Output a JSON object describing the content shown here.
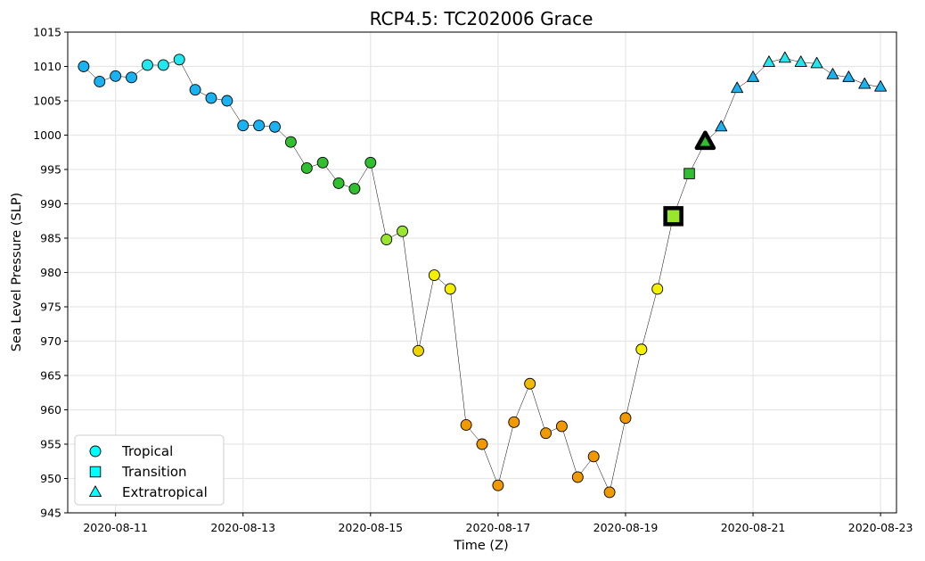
{
  "chart_data": {
    "type": "scatter",
    "title": "RCP4.5: TC202006 Grace",
    "xlabel": "Time (Z)",
    "ylabel": "Sea Level Pressure (SLP)",
    "ylim": [
      945,
      1015
    ],
    "yticks": [
      945,
      950,
      955,
      960,
      965,
      970,
      975,
      980,
      985,
      990,
      995,
      1000,
      1005,
      1010,
      1015
    ],
    "xlim": [
      "2020-08-10T06:00",
      "2020-08-23T06:00"
    ],
    "xticks": [
      "2020-08-11",
      "2020-08-13",
      "2020-08-15",
      "2020-08-17",
      "2020-08-19",
      "2020-08-21",
      "2020-08-23"
    ],
    "grid": true,
    "legend": {
      "placement": "lower-left",
      "entries": [
        {
          "label": "Tropical",
          "marker": "circle"
        },
        {
          "label": "Transition",
          "marker": "square"
        },
        {
          "label": "Extratropical",
          "marker": "triangle"
        }
      ]
    },
    "colors": {
      "line": "#000000",
      "legend_marker": "#00ffff",
      "highlight_edge": "#000000"
    },
    "series": [
      {
        "x": [
          "2020-08-10T12:00",
          "2020-08-10T18:00",
          "2020-08-11T00:00",
          "2020-08-11T06:00",
          "2020-08-11T12:00",
          "2020-08-11T18:00",
          "2020-08-12T00:00",
          "2020-08-12T06:00",
          "2020-08-12T12:00",
          "2020-08-12T18:00",
          "2020-08-13T00:00",
          "2020-08-13T06:00",
          "2020-08-13T12:00",
          "2020-08-13T18:00",
          "2020-08-14T00:00",
          "2020-08-14T06:00",
          "2020-08-14T12:00",
          "2020-08-14T18:00",
          "2020-08-15T00:00",
          "2020-08-15T06:00",
          "2020-08-15T12:00",
          "2020-08-15T18:00",
          "2020-08-16T00:00",
          "2020-08-16T06:00",
          "2020-08-16T12:00",
          "2020-08-16T18:00",
          "2020-08-17T00:00",
          "2020-08-17T06:00",
          "2020-08-17T12:00",
          "2020-08-17T18:00",
          "2020-08-18T00:00",
          "2020-08-18T06:00",
          "2020-08-18T12:00",
          "2020-08-18T18:00",
          "2020-08-19T00:00",
          "2020-08-19T06:00",
          "2020-08-19T12:00",
          "2020-08-19T18:00",
          "2020-08-20T00:00",
          "2020-08-20T06:00",
          "2020-08-20T12:00",
          "2020-08-20T18:00",
          "2020-08-21T00:00",
          "2020-08-21T06:00",
          "2020-08-21T12:00",
          "2020-08-21T18:00",
          "2020-08-22T00:00",
          "2020-08-22T06:00",
          "2020-08-22T12:00",
          "2020-08-22T18:00",
          "2020-08-23T00:00"
        ],
        "y": [
          1010,
          1007.8,
          1008.6,
          1008.4,
          1010.2,
          1010.2,
          1011,
          1006.6,
          1005.4,
          1005,
          1001.4,
          1001.4,
          1001.2,
          999,
          995.2,
          996,
          993,
          992.2,
          996,
          984.8,
          986,
          968.6,
          979.6,
          977.6,
          957.8,
          955,
          949,
          958.2,
          963.8,
          956.6,
          957.6,
          950.2,
          953.2,
          948,
          958.8,
          968.8,
          977.6,
          988.2,
          994.4,
          999,
          1001.2,
          1006.8,
          1008.4,
          1010.6,
          1011.2,
          1010.6,
          1010.4,
          1008.8,
          1008.4,
          1007.4,
          1007
        ],
        "phase": [
          "Tropical",
          "Tropical",
          "Tropical",
          "Tropical",
          "Tropical",
          "Tropical",
          "Tropical",
          "Tropical",
          "Tropical",
          "Tropical",
          "Tropical",
          "Tropical",
          "Tropical",
          "Tropical",
          "Tropical",
          "Tropical",
          "Tropical",
          "Tropical",
          "Tropical",
          "Tropical",
          "Tropical",
          "Tropical",
          "Tropical",
          "Tropical",
          "Tropical",
          "Tropical",
          "Tropical",
          "Tropical",
          "Tropical",
          "Tropical",
          "Tropical",
          "Tropical",
          "Tropical",
          "Tropical",
          "Tropical",
          "Tropical",
          "Tropical",
          "Transition",
          "Transition",
          "Extratropical",
          "Extratropical",
          "Extratropical",
          "Extratropical",
          "Extratropical",
          "Extratropical",
          "Extratropical",
          "Extratropical",
          "Extratropical",
          "Extratropical",
          "Extratropical",
          "Extratropical"
        ],
        "color": [
          "#1ab2f0",
          "#1ab2f0",
          "#1ab2f0",
          "#1ab2f0",
          "#22e8ee",
          "#22e8ee",
          "#22e8ee",
          "#1ab2f0",
          "#1ab2f0",
          "#1ab2f0",
          "#1ab2f0",
          "#1ab2f0",
          "#1ab2f0",
          "#2fbf2f",
          "#2fbf2f",
          "#2fbf2f",
          "#2fbf2f",
          "#2fbf2f",
          "#2fbf2f",
          "#9ae62e",
          "#9ae62e",
          "#f0d400",
          "#f5f000",
          "#f5f000",
          "#f09a00",
          "#f09a00",
          "#f09a00",
          "#f09a00",
          "#f0bb00",
          "#f09a00",
          "#f09a00",
          "#f09a00",
          "#f09a00",
          "#f09a00",
          "#f09a00",
          "#f5f000",
          "#f5f000",
          "#9ae62e",
          "#2fbf2f",
          "#2fbf2f",
          "#1ab2f0",
          "#1ab2f0",
          "#1ab2f0",
          "#22e8ee",
          "#22e8ee",
          "#22e8ee",
          "#22e8ee",
          "#1ab2f0",
          "#1ab2f0",
          "#1ab2f0",
          "#1ab2f0"
        ],
        "highlighted": [
          "2020-08-19T18:00",
          "2020-08-20T06:00"
        ]
      }
    ]
  }
}
